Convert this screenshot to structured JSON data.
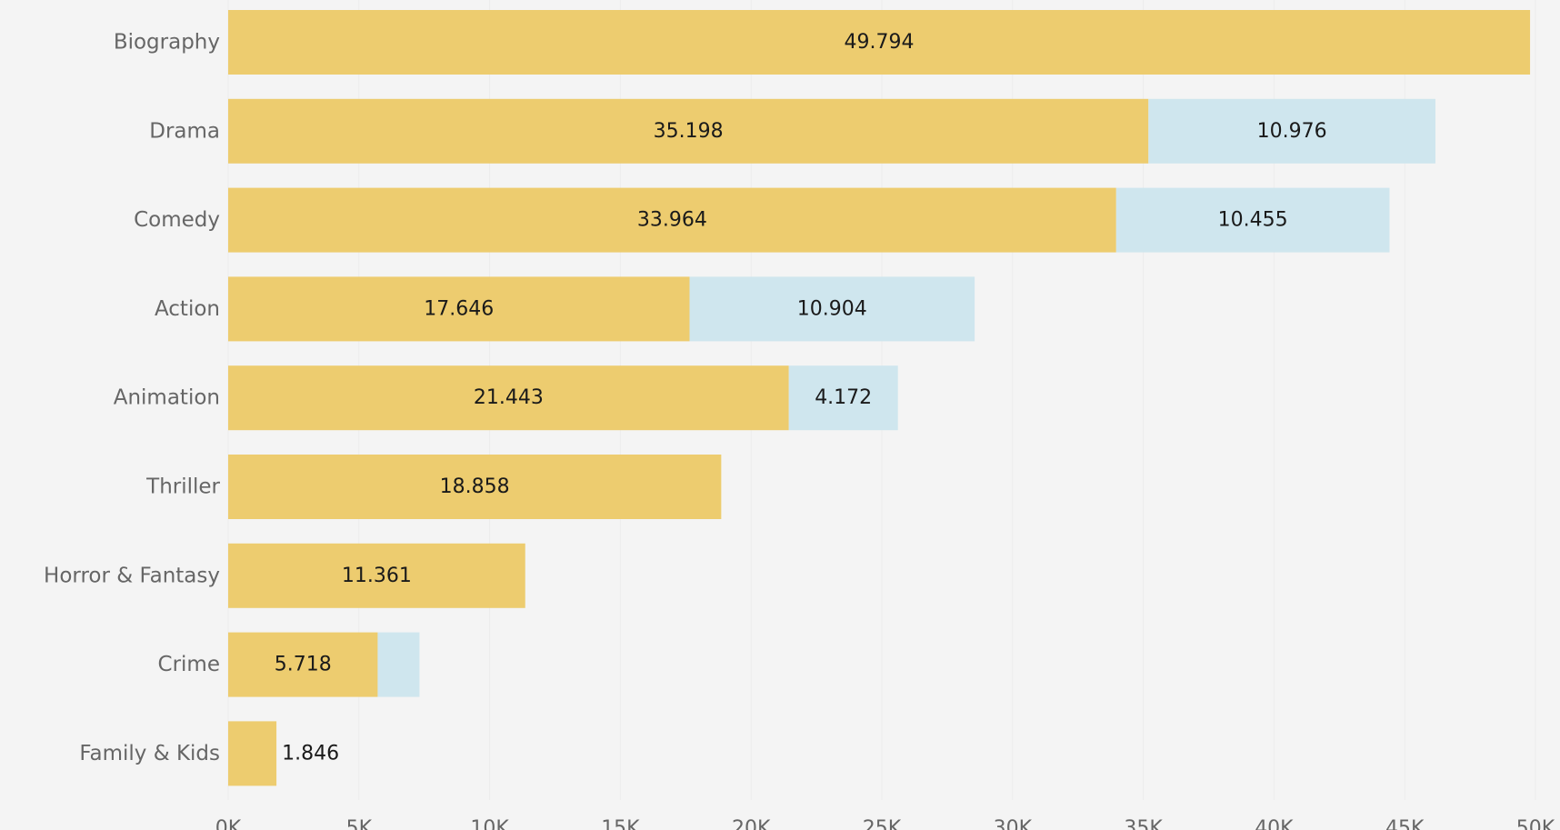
{
  "chart_data": {
    "type": "bar",
    "orientation": "horizontal",
    "stacked": true,
    "title": "",
    "xlabel": "",
    "ylabel": "",
    "xlim": [
      0,
      50000
    ],
    "x_ticks": [
      0,
      5000,
      10000,
      15000,
      20000,
      25000,
      30000,
      35000,
      40000,
      45000,
      50000
    ],
    "x_tick_labels": [
      "0K",
      "5K",
      "10K",
      "15K",
      "20K",
      "25K",
      "30K",
      "35K",
      "40K",
      "45K",
      "50K"
    ],
    "grid": true,
    "legend": "none",
    "categories": [
      "Biography",
      "Drama",
      "Comedy",
      "Action",
      "Animation",
      "Thriller",
      "Horror & Fantasy",
      "Crime",
      "Family & Kids"
    ],
    "series": [
      {
        "color": "#edcc6f",
        "values": [
          49794,
          35198,
          33964,
          17646,
          21443,
          18858,
          11361,
          5718,
          1846
        ],
        "labels": [
          "49.794",
          "35.198",
          "33.964",
          "17.646",
          "21.443",
          "18.858",
          "11.361",
          "5.718",
          "1.846"
        ]
      },
      {
        "color": "#cfe6ee",
        "values": [
          0,
          10976,
          10455,
          10904,
          4172,
          0,
          0,
          1600,
          0
        ],
        "labels": [
          "",
          "10.976",
          "10.455",
          "10.904",
          "4.172",
          "",
          "",
          "",
          ""
        ]
      }
    ]
  }
}
